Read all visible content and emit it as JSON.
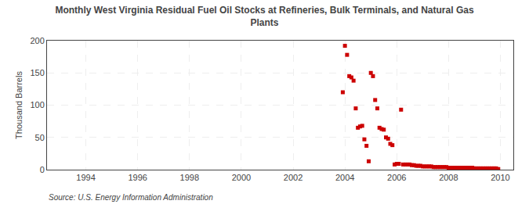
{
  "chart_data": {
    "type": "scatter",
    "title": "Monthly West Virginia Residual Fuel Oil Stocks at Refineries, Bulk Terminals, and Natural Gas\nPlants",
    "ylabel": "Thousand Barrels",
    "source": "Source: U.S. Energy Information Administration",
    "color": "#cc0000",
    "marker": "square",
    "grid": true,
    "xlim": [
      1992.5,
      2010.5
    ],
    "ylim": [
      0,
      200
    ],
    "xticks": [
      1994,
      1996,
      1998,
      2000,
      2002,
      2004,
      2006,
      2008,
      2010
    ],
    "yticks": [
      0,
      50,
      100,
      150,
      200
    ],
    "x": [
      2003.917,
      2004.0,
      2004.083,
      2004.167,
      2004.25,
      2004.333,
      2004.417,
      2004.5,
      2004.583,
      2004.667,
      2004.75,
      2004.833,
      2004.917,
      2005.0,
      2005.083,
      2005.167,
      2005.25,
      2005.333,
      2005.417,
      2005.5,
      2005.583,
      2005.667,
      2005.75,
      2005.833,
      2005.917,
      2006.0,
      2006.083,
      2006.167,
      2006.25,
      2006.333,
      2006.417,
      2006.5,
      2006.583,
      2006.667,
      2006.75,
      2006.833,
      2006.917,
      2007.0,
      2007.083,
      2007.167,
      2007.25,
      2007.333,
      2007.417,
      2007.5,
      2007.583,
      2007.667,
      2007.75,
      2007.833,
      2007.917,
      2008.0,
      2008.083,
      2008.167,
      2008.25,
      2008.333,
      2008.417,
      2008.5,
      2008.583,
      2008.667,
      2008.75,
      2008.833,
      2008.917,
      2009.0,
      2009.083,
      2009.167,
      2009.25,
      2009.333,
      2009.417,
      2009.5,
      2009.583,
      2009.667,
      2009.75,
      2009.833,
      2009.917
    ],
    "values": [
      120,
      192,
      178,
      145,
      143,
      138,
      95,
      65,
      67,
      68,
      47,
      37,
      13,
      150,
      145,
      108,
      95,
      65,
      63,
      62,
      50,
      48,
      40,
      38,
      8,
      9,
      9,
      93,
      8,
      8,
      8,
      8,
      7,
      7,
      6,
      6,
      6,
      5,
      5,
      5,
      5,
      5,
      4,
      4,
      4,
      4,
      4,
      4,
      4,
      3,
      3,
      3,
      3,
      3,
      3,
      3,
      3,
      3,
      3,
      3,
      3,
      2,
      2,
      2,
      2,
      2,
      2,
      2,
      2,
      2,
      2,
      2,
      1
    ]
  }
}
